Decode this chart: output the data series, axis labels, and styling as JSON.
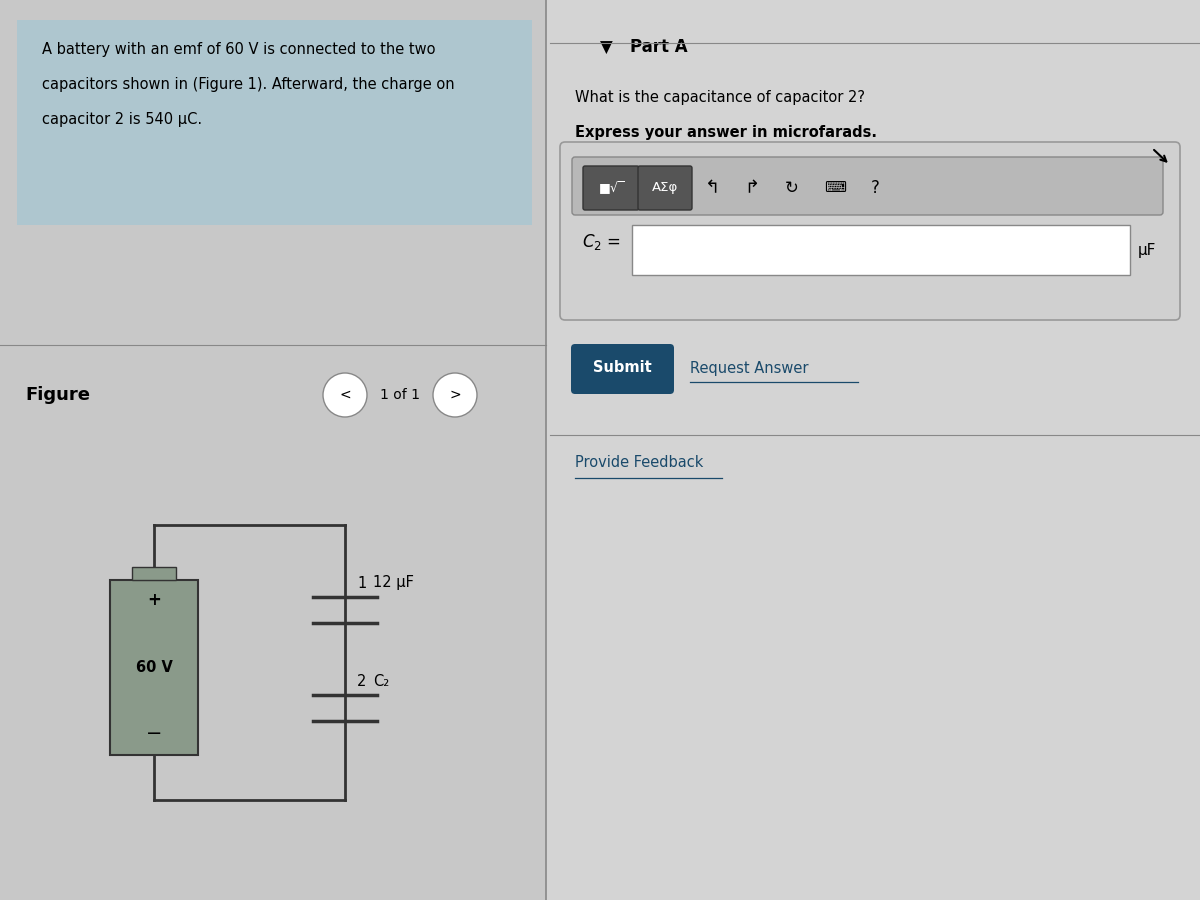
{
  "bg_color": "#c8c8c8",
  "left_panel_bg": "#c8c8c8",
  "right_panel_bg": "#d4d4d4",
  "problem_text_bg": "#aec6cf",
  "problem_text_line1": "A battery with an emf of 60 V is connected to the two",
  "problem_text_line2": "capacitors shown in (Figure 1). Afterward, the charge on",
  "problem_text_line3": "capacitor 2 is 540 μC.",
  "figure_label": "Figure",
  "nav_text": "1 of 1",
  "part_a_label": "▼   Part A",
  "question_line1": "What is the capacitance of capacitor 2?",
  "question_line2": "Express your answer in microfarads.",
  "mu_f_label": "μF",
  "submit_text": "Submit",
  "request_answer_text": "Request Answer",
  "provide_feedback_text": "Provide Feedback",
  "battery_voltage": "60 V",
  "cap1_label": "1",
  "cap1_value": "12 μF",
  "cap2_label": "2",
  "cap2_value": "C₂",
  "submit_bg": "#1a4a6b",
  "submit_text_color": "#ffffff",
  "input_box_bg": "#ffffff",
  "input_box_border": "#888888",
  "link_color": "#1a4a6b"
}
